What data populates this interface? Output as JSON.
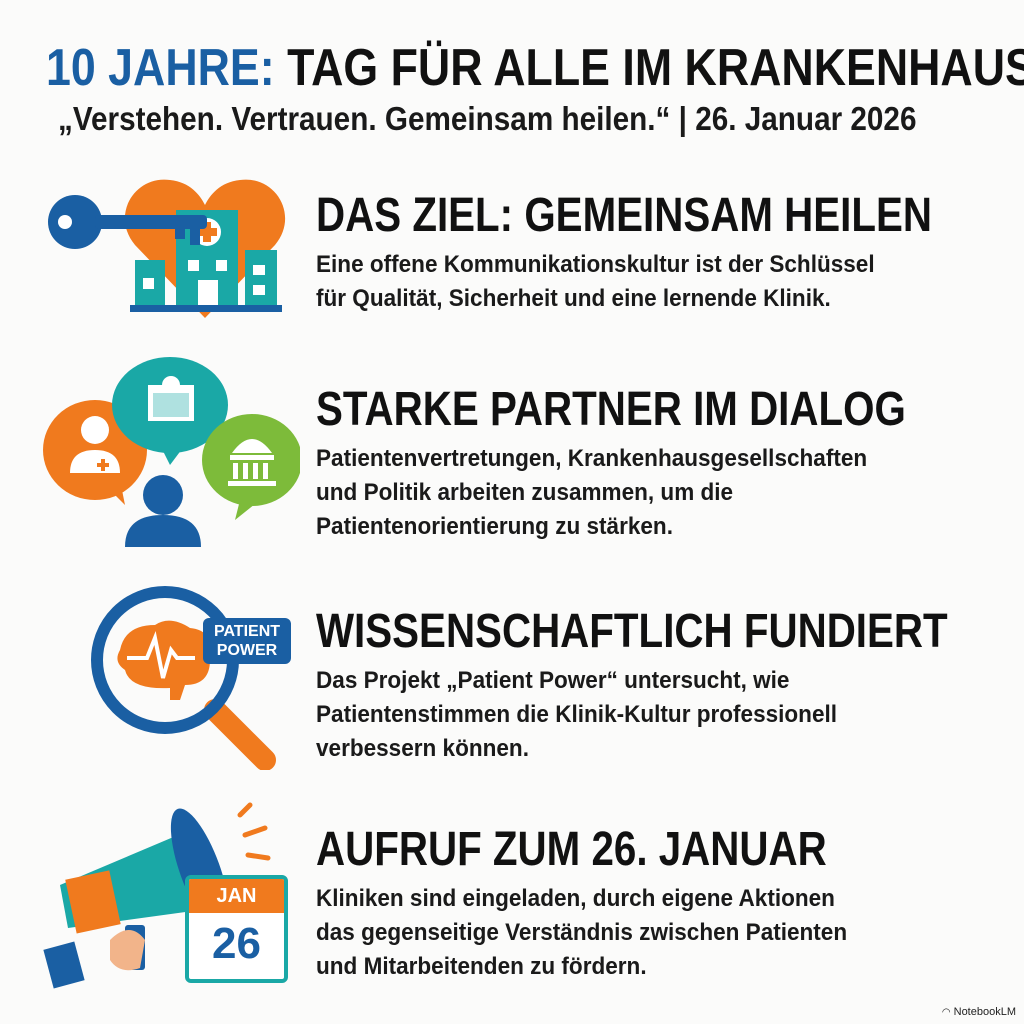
{
  "header": {
    "title_accent": "10 JAHRE:",
    "title_rest": " TAG FÜR ALLE IM KRANKENHAUS",
    "subtitle": "„Verstehen. Vertrauen. Gemeinsam heilen.“ | 26. Januar 2026"
  },
  "colors": {
    "blue": "#1a5fa3",
    "orange": "#f07a1e",
    "teal": "#1aa8a6",
    "green": "#7dbb3a"
  },
  "sections": [
    {
      "icon": "heart-hospital-key-icon",
      "heading": "DAS ZIEL: GEMEINSAM HEILEN",
      "body": "Eine offene Kommunikationskultur ist der Schlüssel\nfür Qualität, Sicherheit und eine lernende Klinik."
    },
    {
      "icon": "dialogue-bubbles-icon",
      "heading": "STARKE PARTNER IM DIALOG",
      "body": "Patientenvertretungen, Krankenhausgesellschaften\nund Politik arbeiten zusammen, um die\nPatientenorientierung zu stärken."
    },
    {
      "icon": "magnifier-brain-icon",
      "icon_label": "PATIENT POWER",
      "heading": "WISSENSCHAFTLICH FUNDIERT",
      "body": "Das Projekt „Patient Power“ untersucht, wie\nPatientenstimmen die Klinik-Kultur professionell\nverbessern können."
    },
    {
      "icon": "megaphone-calendar-icon",
      "calendar_month": "JAN",
      "calendar_day": "26",
      "heading": "AUFRUF ZUM 26. JANUAR",
      "body": "Kliniken sind eingeladen, durch eigene Aktionen\ndas gegenseitige Verständnis zwischen Patienten\nund Mitarbeitenden zu fördern."
    }
  ],
  "footer": {
    "brand": "NotebookLM"
  }
}
